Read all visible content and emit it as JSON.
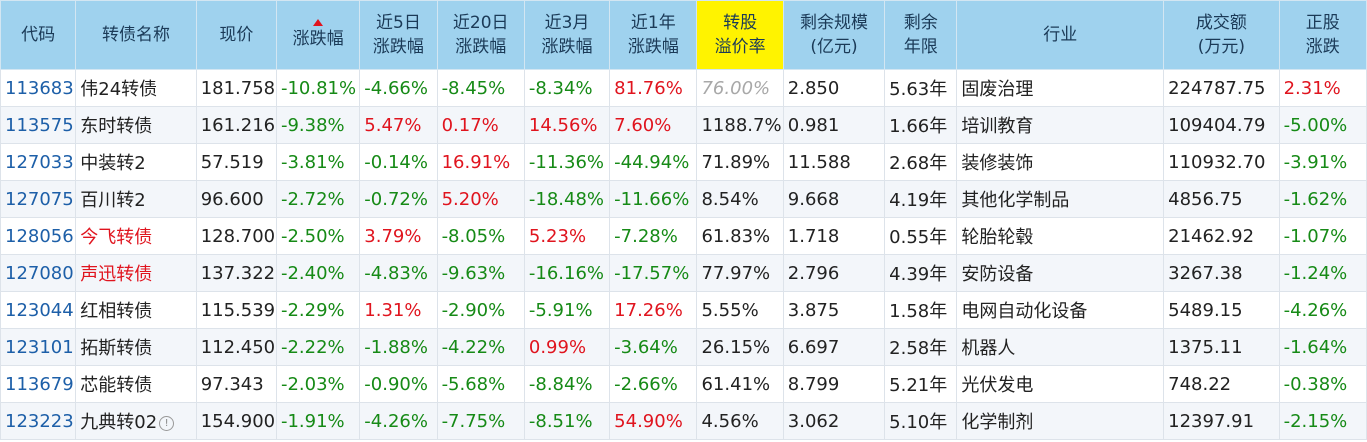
{
  "colors": {
    "header_bg": "#9fd2ee",
    "highlight_header_bg": "#fff300",
    "up": "#e0141e",
    "down": "#168a16",
    "code": "#1d5fa8",
    "muted": "#a8a8a8"
  },
  "headers": [
    {
      "lines": [
        "代码"
      ]
    },
    {
      "lines": [
        "转债名称"
      ]
    },
    {
      "lines": [
        "现价"
      ]
    },
    {
      "lines": [
        "涨跌幅"
      ],
      "sorted": "ascending-indicator"
    },
    {
      "lines": [
        "近5日",
        "涨跌幅"
      ]
    },
    {
      "lines": [
        "近20日",
        "涨跌幅"
      ]
    },
    {
      "lines": [
        "近3月",
        "涨跌幅"
      ]
    },
    {
      "lines": [
        "近1年",
        "涨跌幅"
      ]
    },
    {
      "lines": [
        "转股",
        "溢价率"
      ],
      "highlight": true
    },
    {
      "lines": [
        "剩余规模",
        "(亿元)"
      ]
    },
    {
      "lines": [
        "剩余",
        "年限"
      ]
    },
    {
      "lines": [
        "行业"
      ]
    },
    {
      "lines": [
        "成交额",
        "(万元)"
      ]
    },
    {
      "lines": [
        "正股",
        "涨跌"
      ]
    }
  ],
  "rows": [
    {
      "code": "113683",
      "name": "伟24转债",
      "name_color": "normal",
      "price": "181.758",
      "chg": "-10.81%",
      "chg5": "-4.66%",
      "chg20": "-8.45%",
      "chg3m": "-8.34%",
      "chg1y": "81.76%",
      "premium": "76.00%",
      "premium_style": "gray",
      "size": "2.850",
      "years": "5.63年",
      "industry": "固废治理",
      "turnover": "224787.75",
      "stock_chg": "2.31%"
    },
    {
      "code": "113575",
      "name": "东时转债",
      "name_color": "normal",
      "price": "161.216",
      "chg": "-9.38%",
      "chg5": "5.47%",
      "chg20": "0.17%",
      "chg3m": "14.56%",
      "chg1y": "7.60%",
      "premium": "1188.7%",
      "premium_style": "normal",
      "size": "0.981",
      "years": "1.66年",
      "industry": "培训教育",
      "turnover": "109404.79",
      "stock_chg": "-5.00%"
    },
    {
      "code": "127033",
      "name": "中装转2",
      "name_color": "normal",
      "price": "57.519",
      "chg": "-3.81%",
      "chg5": "-0.14%",
      "chg20": "16.91%",
      "chg3m": "-11.36%",
      "chg1y": "-44.94%",
      "premium": "71.89%",
      "premium_style": "normal",
      "size": "11.588",
      "years": "2.68年",
      "industry": "装修装饰",
      "turnover": "110932.70",
      "stock_chg": "-3.91%"
    },
    {
      "code": "127075",
      "name": "百川转2",
      "name_color": "normal",
      "price": "96.600",
      "chg": "-2.72%",
      "chg5": "-0.72%",
      "chg20": "5.20%",
      "chg3m": "-18.48%",
      "chg1y": "-11.66%",
      "premium": "8.54%",
      "premium_style": "normal",
      "size": "9.668",
      "years": "4.19年",
      "industry": "其他化学制品",
      "turnover": "4856.75",
      "stock_chg": "-1.62%"
    },
    {
      "code": "128056",
      "name": "今飞转债",
      "name_color": "red",
      "price": "128.700",
      "chg": "-2.50%",
      "chg5": "3.79%",
      "chg20": "-8.05%",
      "chg3m": "5.23%",
      "chg1y": "-7.28%",
      "premium": "61.83%",
      "premium_style": "normal",
      "size": "1.718",
      "years": "0.55年",
      "industry": "轮胎轮毂",
      "turnover": "21462.92",
      "stock_chg": "-1.07%"
    },
    {
      "code": "127080",
      "name": "声迅转债",
      "name_color": "red",
      "price": "137.322",
      "chg": "-2.40%",
      "chg5": "-4.83%",
      "chg20": "-9.63%",
      "chg3m": "-16.16%",
      "chg1y": "-17.57%",
      "premium": "77.97%",
      "premium_style": "normal",
      "size": "2.796",
      "years": "4.39年",
      "industry": "安防设备",
      "turnover": "3267.38",
      "stock_chg": "-1.24%"
    },
    {
      "code": "123044",
      "name": "红相转债",
      "name_color": "normal",
      "price": "115.539",
      "chg": "-2.29%",
      "chg5": "1.31%",
      "chg20": "-2.90%",
      "chg3m": "-5.91%",
      "chg1y": "17.26%",
      "premium": "5.55%",
      "premium_style": "normal",
      "size": "3.875",
      "years": "1.58年",
      "industry": "电网自动化设备",
      "turnover": "5489.15",
      "stock_chg": "-4.26%"
    },
    {
      "code": "123101",
      "name": "拓斯转债",
      "name_color": "normal",
      "price": "112.450",
      "chg": "-2.22%",
      "chg5": "-1.88%",
      "chg20": "-4.22%",
      "chg3m": "0.99%",
      "chg1y": "-3.64%",
      "premium": "26.15%",
      "premium_style": "normal",
      "size": "6.697",
      "years": "2.58年",
      "industry": "机器人",
      "turnover": "1375.11",
      "stock_chg": "-1.64%"
    },
    {
      "code": "113679",
      "name": "芯能转债",
      "name_color": "normal",
      "price": "97.343",
      "chg": "-2.03%",
      "chg5": "-0.90%",
      "chg20": "-5.68%",
      "chg3m": "-8.84%",
      "chg1y": "-2.66%",
      "premium": "61.41%",
      "premium_style": "normal",
      "size": "8.799",
      "years": "5.21年",
      "industry": "光伏发电",
      "turnover": "748.22",
      "stock_chg": "-0.38%"
    },
    {
      "code": "123223",
      "name": "九典转02",
      "name_color": "normal",
      "name_icon": "info-icon",
      "price": "154.900",
      "chg": "-1.91%",
      "chg5": "-4.26%",
      "chg20": "-7.75%",
      "chg3m": "-8.51%",
      "chg1y": "54.90%",
      "premium": "4.56%",
      "premium_style": "normal",
      "size": "3.062",
      "years": "5.10年",
      "industry": "化学制剂",
      "turnover": "12397.91",
      "stock_chg": "-2.15%"
    }
  ]
}
